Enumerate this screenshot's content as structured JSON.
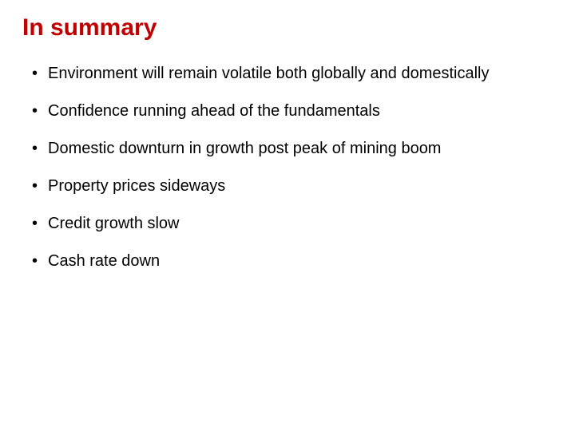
{
  "title": {
    "text": "In summary",
    "color": "#c00000",
    "fontsize": 30,
    "fontweight": "bold"
  },
  "bullets": {
    "color": "#000000",
    "fontsize": 20,
    "items": [
      "Environment will remain volatile both globally and domestically",
      "Confidence running ahead of the fundamentals",
      "Domestic downturn in growth post peak of mining boom",
      "Property prices sideways",
      "Credit growth slow",
      "Cash rate down"
    ]
  },
  "background_color": "#ffffff"
}
